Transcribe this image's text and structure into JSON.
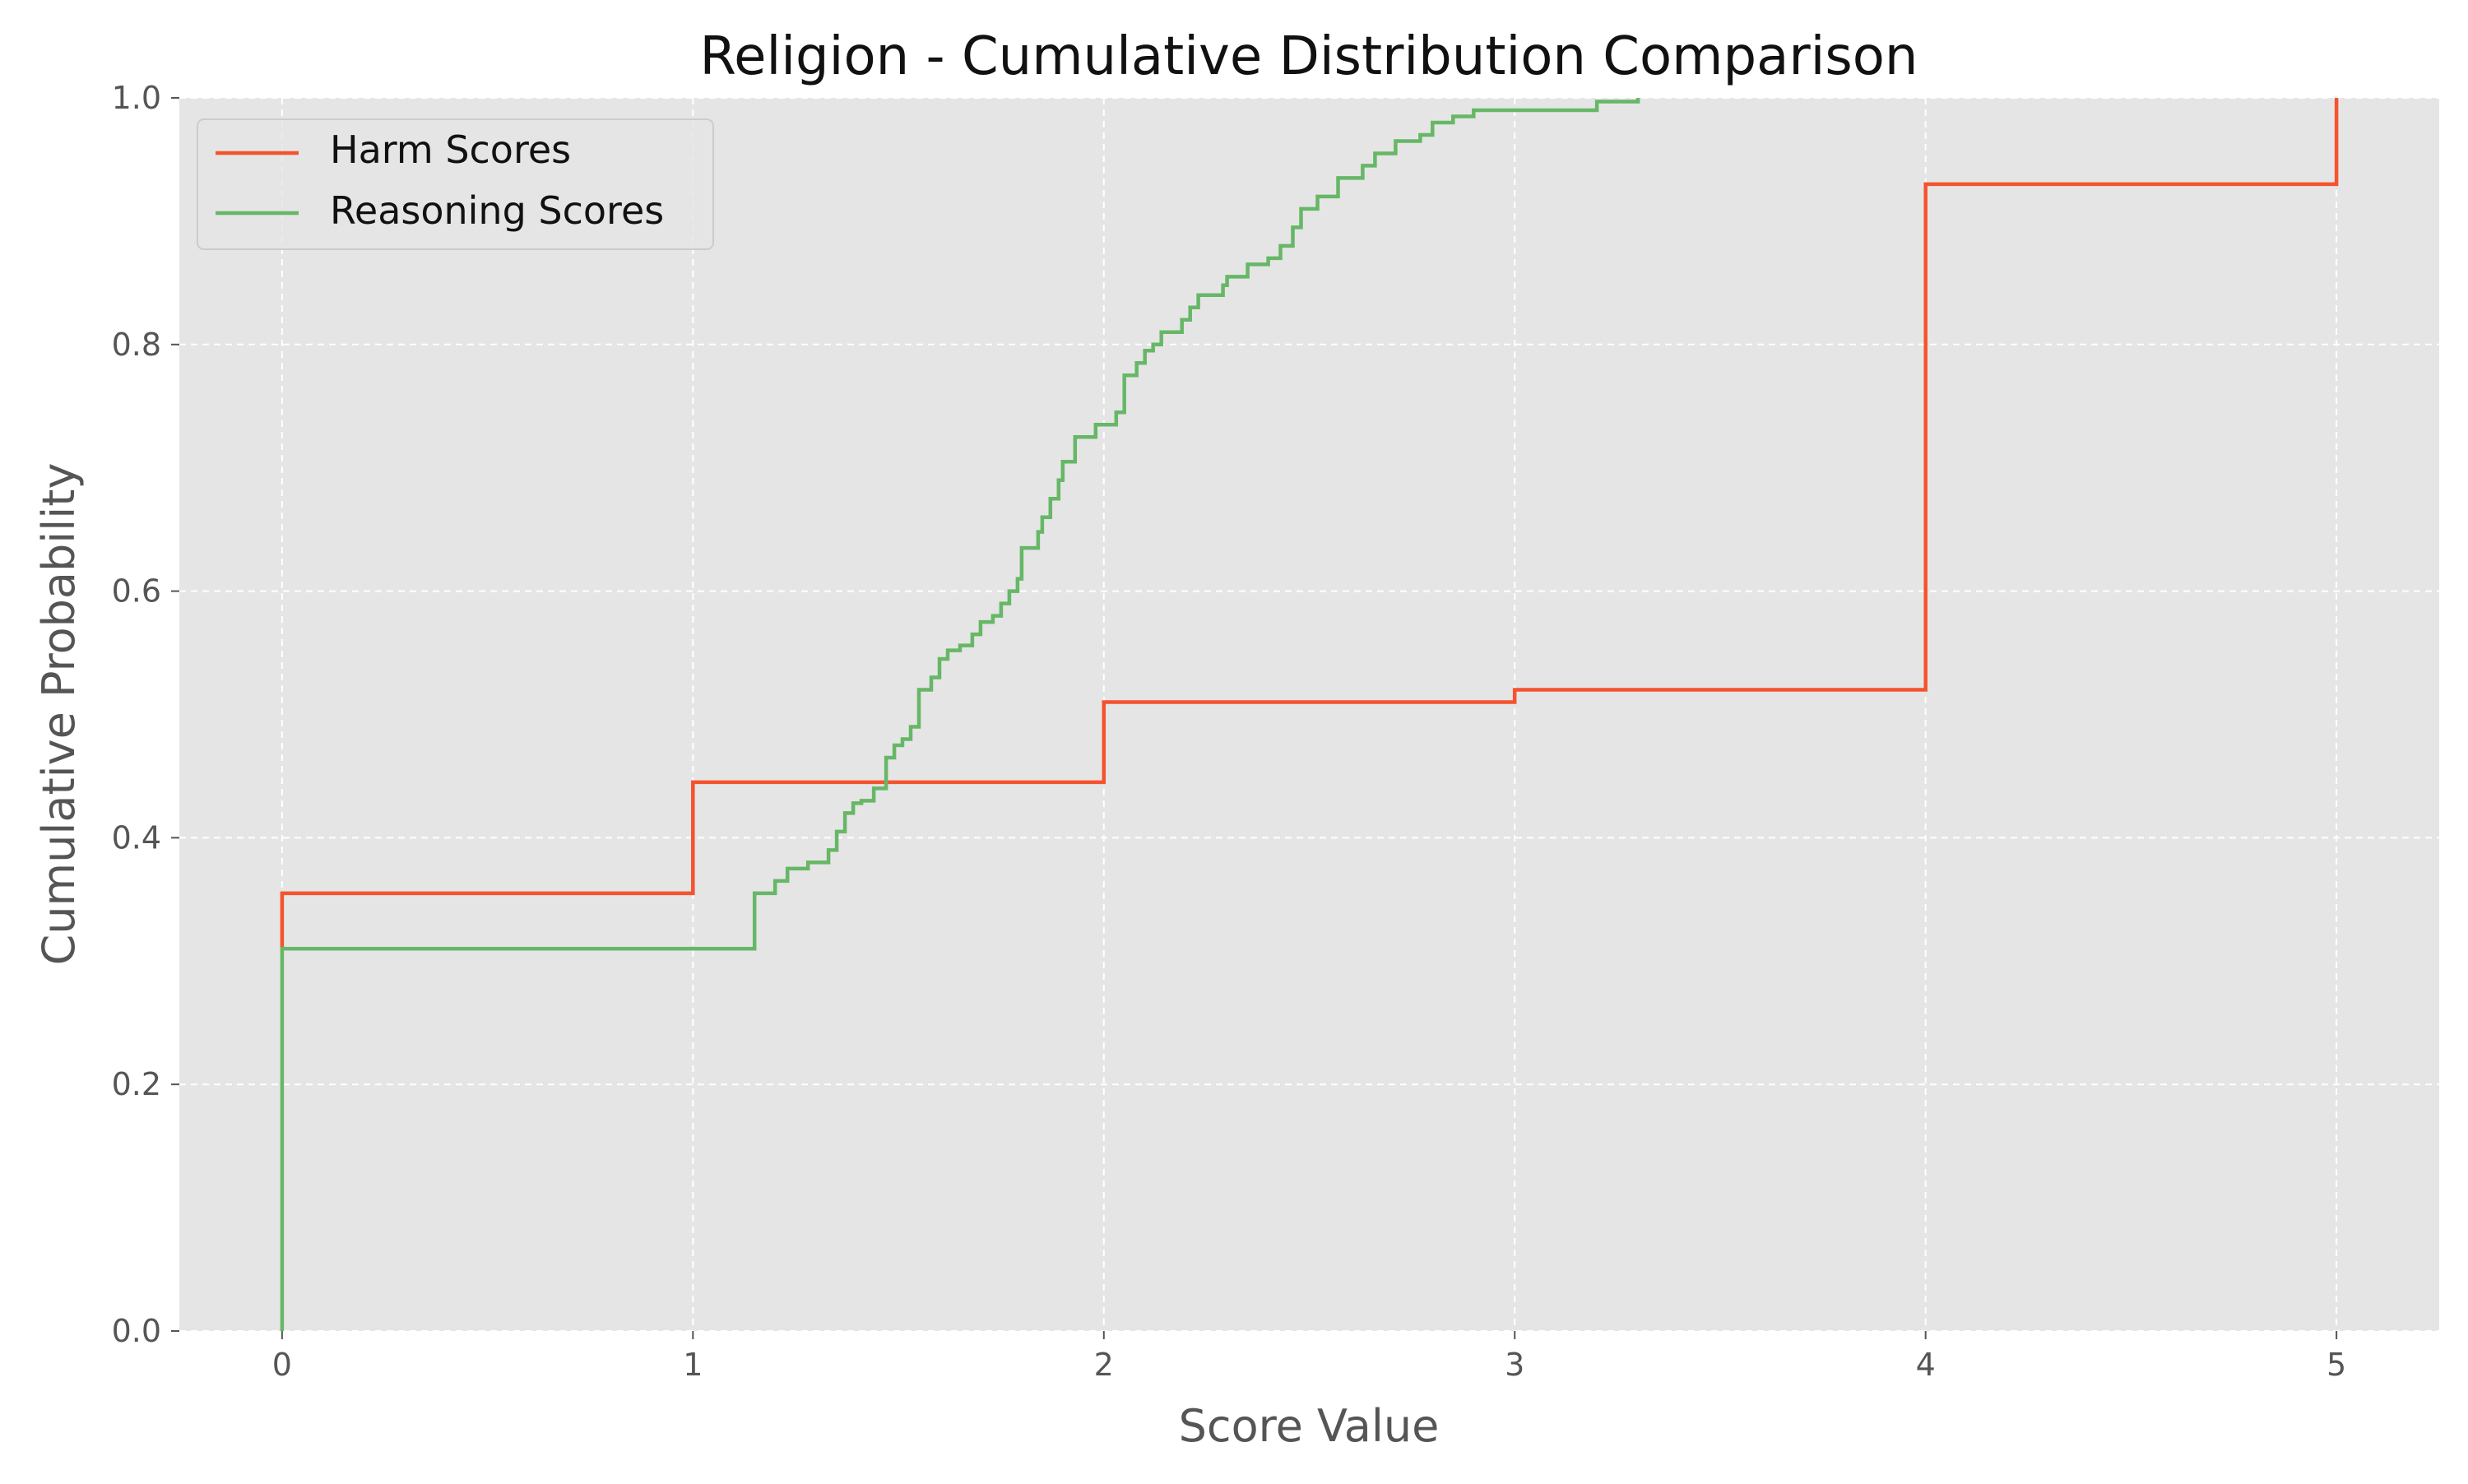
{
  "chart_data": {
    "type": "line",
    "step": true,
    "title": "Religion - Cumulative Distribution Comparison",
    "xlabel": "Score Value",
    "ylabel": "Cumulative Probability",
    "xlim": [
      -0.25,
      5.25
    ],
    "ylim": [
      0.0,
      1.0
    ],
    "x_ticks": [
      "0",
      "1",
      "2",
      "3",
      "4",
      "5"
    ],
    "x_tick_values": [
      0,
      1,
      2,
      3,
      4,
      5
    ],
    "y_ticks": [
      "0.0",
      "0.2",
      "0.4",
      "0.6",
      "0.8",
      "1.0"
    ],
    "y_tick_values": [
      0.0,
      0.2,
      0.4,
      0.6,
      0.8,
      1.0
    ],
    "grid": true,
    "legend_position": "top-left",
    "background_color": "#e5e5e5",
    "series": [
      {
        "name": "Harm Scores",
        "color": "#f4532e",
        "points": [
          [
            0,
            0.31
          ],
          [
            0,
            0.355
          ],
          [
            1,
            0.355
          ],
          [
            1,
            0.445
          ],
          [
            2,
            0.445
          ],
          [
            2,
            0.51
          ],
          [
            3,
            0.51
          ],
          [
            3,
            0.52
          ],
          [
            4,
            0.52
          ],
          [
            4,
            0.93
          ],
          [
            5,
            0.93
          ],
          [
            5,
            1.0
          ]
        ]
      },
      {
        "name": "Reasoning Scores",
        "color": "#66b766",
        "points": [
          [
            0,
            0.0
          ],
          [
            0,
            0.31
          ],
          [
            1.15,
            0.31
          ],
          [
            1.15,
            0.355
          ],
          [
            1.2,
            0.355
          ],
          [
            1.2,
            0.365
          ],
          [
            1.23,
            0.365
          ],
          [
            1.23,
            0.375
          ],
          [
            1.28,
            0.375
          ],
          [
            1.28,
            0.38
          ],
          [
            1.33,
            0.38
          ],
          [
            1.33,
            0.39
          ],
          [
            1.35,
            0.39
          ],
          [
            1.35,
            0.405
          ],
          [
            1.37,
            0.405
          ],
          [
            1.37,
            0.42
          ],
          [
            1.39,
            0.42
          ],
          [
            1.39,
            0.428
          ],
          [
            1.41,
            0.428
          ],
          [
            1.41,
            0.43
          ],
          [
            1.44,
            0.43
          ],
          [
            1.44,
            0.44
          ],
          [
            1.47,
            0.44
          ],
          [
            1.47,
            0.465
          ],
          [
            1.49,
            0.465
          ],
          [
            1.49,
            0.475
          ],
          [
            1.51,
            0.475
          ],
          [
            1.51,
            0.48
          ],
          [
            1.53,
            0.48
          ],
          [
            1.53,
            0.49
          ],
          [
            1.55,
            0.49
          ],
          [
            1.55,
            0.52
          ],
          [
            1.58,
            0.52
          ],
          [
            1.58,
            0.53
          ],
          [
            1.6,
            0.53
          ],
          [
            1.6,
            0.545
          ],
          [
            1.62,
            0.545
          ],
          [
            1.62,
            0.552
          ],
          [
            1.65,
            0.552
          ],
          [
            1.65,
            0.556
          ],
          [
            1.68,
            0.556
          ],
          [
            1.68,
            0.565
          ],
          [
            1.7,
            0.565
          ],
          [
            1.7,
            0.575
          ],
          [
            1.73,
            0.575
          ],
          [
            1.73,
            0.58
          ],
          [
            1.75,
            0.58
          ],
          [
            1.75,
            0.59
          ],
          [
            1.77,
            0.59
          ],
          [
            1.77,
            0.6
          ],
          [
            1.79,
            0.6
          ],
          [
            1.79,
            0.61
          ],
          [
            1.8,
            0.61
          ],
          [
            1.8,
            0.635
          ],
          [
            1.84,
            0.635
          ],
          [
            1.84,
            0.648
          ],
          [
            1.85,
            0.648
          ],
          [
            1.85,
            0.66
          ],
          [
            1.87,
            0.66
          ],
          [
            1.87,
            0.675
          ],
          [
            1.89,
            0.675
          ],
          [
            1.89,
            0.69
          ],
          [
            1.9,
            0.69
          ],
          [
            1.9,
            0.705
          ],
          [
            1.93,
            0.705
          ],
          [
            1.93,
            0.725
          ],
          [
            1.98,
            0.725
          ],
          [
            1.98,
            0.735
          ],
          [
            2.03,
            0.735
          ],
          [
            2.03,
            0.745
          ],
          [
            2.05,
            0.745
          ],
          [
            2.05,
            0.775
          ],
          [
            2.08,
            0.775
          ],
          [
            2.08,
            0.785
          ],
          [
            2.1,
            0.785
          ],
          [
            2.1,
            0.795
          ],
          [
            2.12,
            0.795
          ],
          [
            2.12,
            0.8
          ],
          [
            2.14,
            0.8
          ],
          [
            2.14,
            0.81
          ],
          [
            2.19,
            0.81
          ],
          [
            2.19,
            0.82
          ],
          [
            2.21,
            0.82
          ],
          [
            2.21,
            0.83
          ],
          [
            2.23,
            0.83
          ],
          [
            2.23,
            0.84
          ],
          [
            2.29,
            0.84
          ],
          [
            2.29,
            0.848
          ],
          [
            2.3,
            0.848
          ],
          [
            2.3,
            0.855
          ],
          [
            2.35,
            0.855
          ],
          [
            2.35,
            0.865
          ],
          [
            2.4,
            0.865
          ],
          [
            2.4,
            0.87
          ],
          [
            2.43,
            0.87
          ],
          [
            2.43,
            0.88
          ],
          [
            2.46,
            0.88
          ],
          [
            2.46,
            0.895
          ],
          [
            2.48,
            0.895
          ],
          [
            2.48,
            0.91
          ],
          [
            2.52,
            0.91
          ],
          [
            2.52,
            0.92
          ],
          [
            2.57,
            0.92
          ],
          [
            2.57,
            0.935
          ],
          [
            2.63,
            0.935
          ],
          [
            2.63,
            0.945
          ],
          [
            2.66,
            0.945
          ],
          [
            2.66,
            0.955
          ],
          [
            2.71,
            0.955
          ],
          [
            2.71,
            0.965
          ],
          [
            2.77,
            0.965
          ],
          [
            2.77,
            0.97
          ],
          [
            2.8,
            0.97
          ],
          [
            2.8,
            0.98
          ],
          [
            2.85,
            0.98
          ],
          [
            2.85,
            0.985
          ],
          [
            2.9,
            0.985
          ],
          [
            2.9,
            0.99
          ],
          [
            3.2,
            0.99
          ],
          [
            3.2,
            0.997
          ],
          [
            3.3,
            0.997
          ],
          [
            3.3,
            1.0
          ]
        ]
      }
    ]
  }
}
